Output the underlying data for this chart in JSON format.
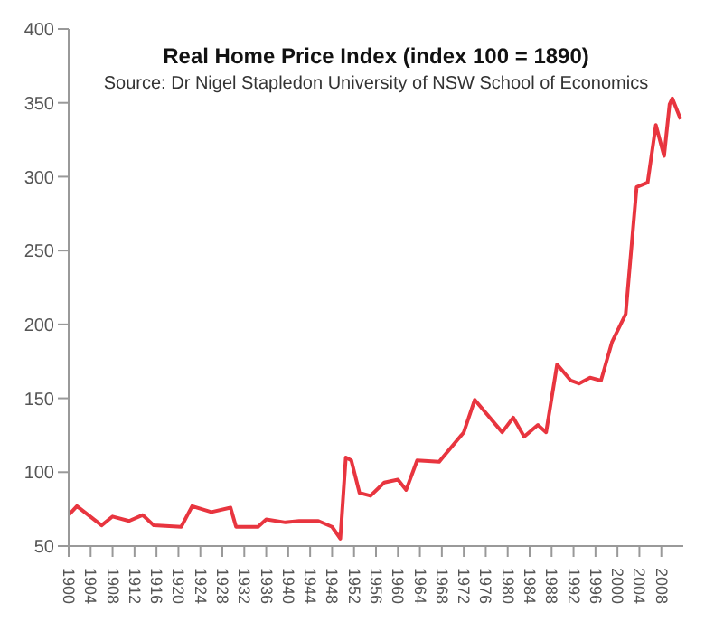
{
  "chart_data": {
    "type": "line",
    "title": "Real Home Price Index (index 100 = 1890)",
    "annotations": [
      "Source: Dr Nigel Stapledon University of NSW School of Economics"
    ],
    "x": [
      1900,
      1901.5,
      1906,
      1908,
      1911,
      1913.5,
      1915.5,
      1920.5,
      1922.5,
      1926,
      1929.5,
      1930.5,
      1934.5,
      1936,
      1939.5,
      1942,
      1945.5,
      1948,
      1949.5,
      1950.5,
      1951.5,
      1953,
      1955,
      1957.5,
      1960,
      1961.5,
      1963.5,
      1967.5,
      1972,
      1974,
      1979,
      1981,
      1983,
      1985.5,
      1987,
      1989,
      1991.5,
      1993,
      1995,
      1997,
      1999,
      2001.5,
      2003.5,
      2005.5,
      2007,
      2008.5,
      2009.5,
      2010,
      2011.5
    ],
    "series": [
      {
        "color": "#e8353f",
        "values": [
          71,
          77,
          64,
          70,
          67,
          71,
          64,
          63,
          77,
          73,
          76,
          63,
          63,
          68,
          66,
          67,
          67,
          63,
          55,
          110,
          108,
          86,
          84,
          93,
          95,
          88,
          108,
          107,
          127,
          149,
          127,
          137,
          124,
          132,
          127,
          173,
          162,
          160,
          164,
          162,
          188,
          207,
          293,
          296,
          335,
          314,
          349,
          353,
          339
        ]
      }
    ],
    "xlim": [
      1900,
      2012
    ],
    "xticks": [
      1900,
      1904,
      1908,
      1912,
      1916,
      1920,
      1924,
      1928,
      1932,
      1936,
      1940,
      1944,
      1948,
      1952,
      1956,
      1960,
      1964,
      1968,
      1972,
      1976,
      1980,
      1984,
      1988,
      1992,
      1996,
      2000,
      2004,
      2008
    ],
    "ylim": [
      50,
      400
    ],
    "yticks": [
      50,
      100,
      150,
      200,
      250,
      300,
      350,
      400
    ],
    "grid": false,
    "legend": false,
    "marker": "none",
    "line_style": "solid"
  }
}
